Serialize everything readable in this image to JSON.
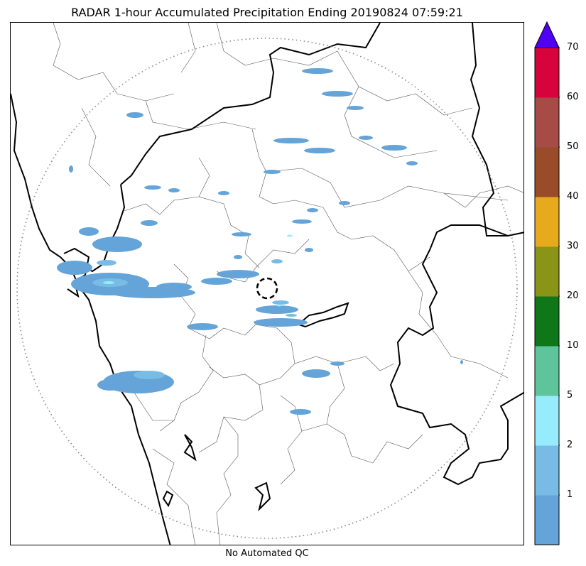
{
  "title": "RADAR 1-hour Accumulated Precipitation Ending 20190824 07:59:21",
  "footer": "No Automated QC",
  "colorbar": {
    "colors": [
      "#64a4d8",
      "#78bce6",
      "#96ecfc",
      "#5ec49c",
      "#0e7718",
      "#8a9518",
      "#e6aa1c",
      "#9a4c28",
      "#a74b46",
      "#d7033d"
    ],
    "extend_color": "#5000f5",
    "ticks": [
      {
        "label": "1",
        "level": 1
      },
      {
        "label": "2",
        "level": 2
      },
      {
        "label": "5",
        "level": 3
      },
      {
        "label": "10",
        "level": 4
      },
      {
        "label": "20",
        "level": 5
      },
      {
        "label": "30",
        "level": 6
      },
      {
        "label": "40",
        "level": 7
      },
      {
        "label": "50",
        "level": 8
      },
      {
        "label": "60",
        "level": 9
      },
      {
        "label": "70",
        "level": 10
      }
    ]
  },
  "radar_site_marker": "dashed-circle",
  "range_ring": "dotted-circle"
}
